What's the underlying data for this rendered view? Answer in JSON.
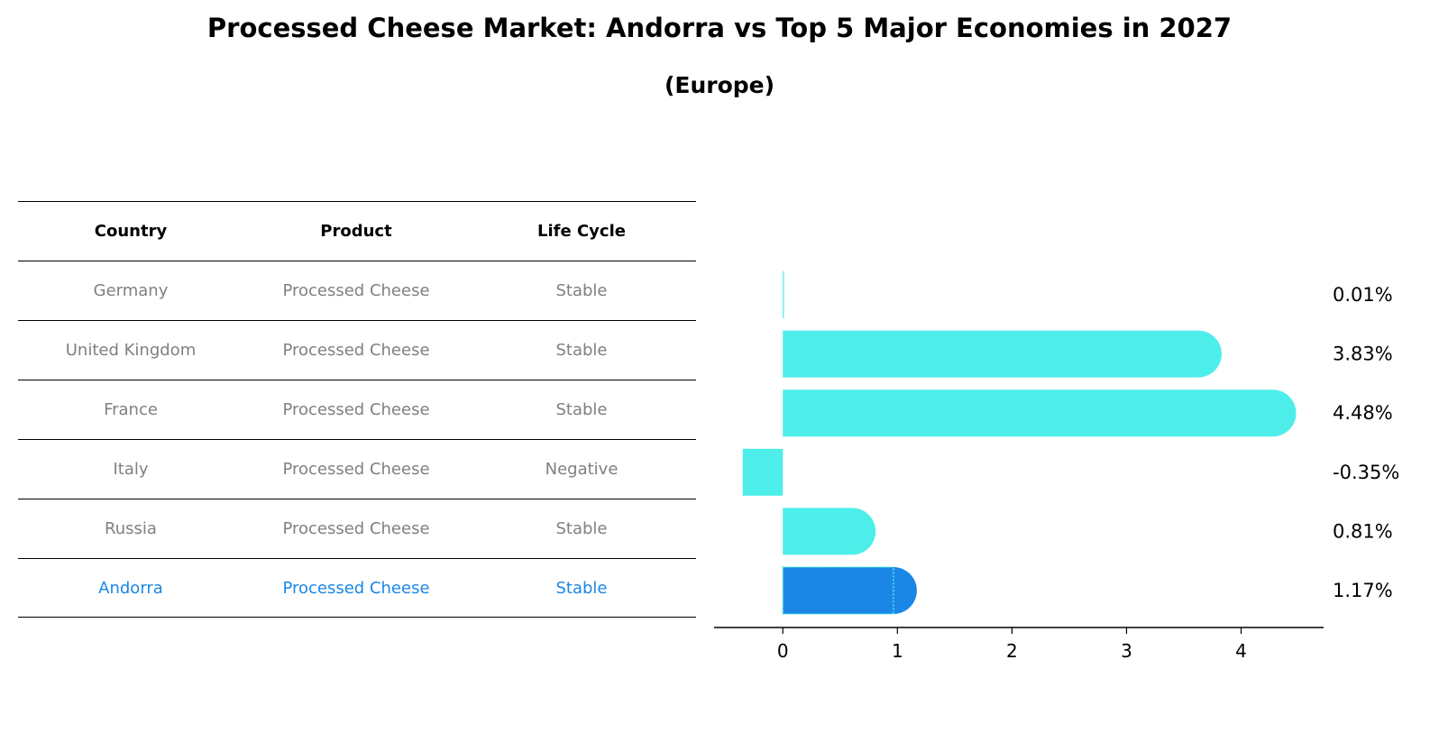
{
  "title": "Processed Cheese Market: Andorra vs Top 5 Major Economies in 2027",
  "subtitle": "(Europe)",
  "table": {
    "headers": [
      "Country",
      "Product",
      "Life Cycle"
    ],
    "rows": [
      {
        "country": "Germany",
        "product": "Processed Cheese",
        "life_cycle": "Stable"
      },
      {
        "country": "United Kingdom",
        "product": "Processed Cheese",
        "life_cycle": "Stable"
      },
      {
        "country": "France",
        "product": "Processed Cheese",
        "life_cycle": "Stable"
      },
      {
        "country": "Italy",
        "product": "Processed Cheese",
        "life_cycle": "Negative"
      },
      {
        "country": "Russia",
        "product": "Processed Cheese",
        "life_cycle": "Stable"
      },
      {
        "country": "Andorra",
        "product": "Processed Cheese",
        "life_cycle": "Stable"
      }
    ]
  },
  "chart_data": {
    "type": "bar",
    "orientation": "horizontal",
    "categories": [
      "Germany",
      "United Kingdom",
      "France",
      "Italy",
      "Russia",
      "Andorra"
    ],
    "values": [
      0.01,
      3.83,
      4.48,
      -0.35,
      0.81,
      1.17
    ],
    "value_labels": [
      "0.01%",
      "3.83%",
      "4.48%",
      "-0.35%",
      "0.81%",
      "1.17%"
    ],
    "highlight": "Andorra",
    "xlim": [
      -0.6,
      4.72
    ],
    "xticks": [
      0,
      1,
      2,
      3,
      4
    ],
    "grid": false,
    "colors": {
      "default": "#4deeea",
      "highlight": "#1a87e6"
    }
  }
}
